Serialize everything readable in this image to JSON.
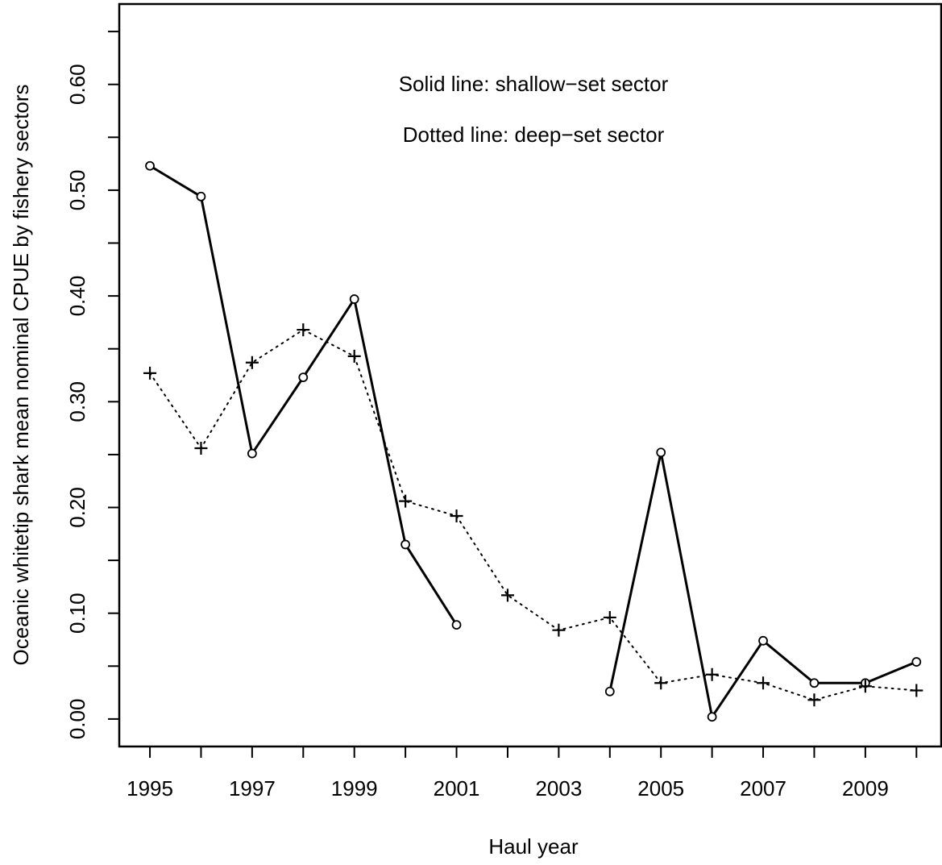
{
  "chart_data": {
    "type": "line",
    "annotations": [
      "Solid line: shallow−set sector",
      "Dotted line: deep−set sector"
    ],
    "xlabel": "Haul year",
    "ylabel": "Oceanic whitetip shark mean nominal CPUE by fishery sectors",
    "x": [
      1995,
      1996,
      1997,
      1998,
      1999,
      2000,
      2001,
      2002,
      2003,
      2004,
      2005,
      2006,
      2007,
      2008,
      2009,
      2010
    ],
    "series": [
      {
        "color": "#000000",
        "line_style": "solid",
        "marker": "circle",
        "values": [
          0.523,
          0.494,
          0.251,
          0.323,
          0.397,
          0.165,
          0.089,
          null,
          null,
          0.026,
          0.252,
          0.002,
          0.074,
          0.034,
          0.034,
          0.054
        ]
      },
      {
        "color": "#000000",
        "line_style": "dotted",
        "marker": "plus",
        "values": [
          0.327,
          0.256,
          0.337,
          0.368,
          0.343,
          0.206,
          0.192,
          0.117,
          0.084,
          0.096,
          0.034,
          0.042,
          0.034,
          0.018,
          0.031,
          0.027
        ]
      }
    ],
    "xlim": [
      1994.4,
      2010.5
    ],
    "xticks": [
      1995,
      1997,
      1999,
      2001,
      2003,
      2005,
      2007,
      2009
    ],
    "xminor_ticks": [
      1996,
      1998,
      2000,
      2002,
      2004,
      2006,
      2008,
      2010
    ],
    "ylim": [
      -0.026,
      0.676
    ],
    "yticks": [
      {
        "value": 0,
        "label": "0.00"
      },
      {
        "value": 0.1,
        "label": "0.10"
      },
      {
        "value": 0.2,
        "label": "0.20"
      },
      {
        "value": 0.3,
        "label": "0.30"
      },
      {
        "value": 0.4,
        "label": "0.40"
      },
      {
        "value": 0.5,
        "label": "0.50"
      },
      {
        "value": 0.6,
        "label": "0.60"
      }
    ],
    "yminor_ticks": [
      0.05,
      0.15,
      0.25,
      0.35,
      0.45,
      0.55,
      0.65
    ],
    "grid": false
  }
}
